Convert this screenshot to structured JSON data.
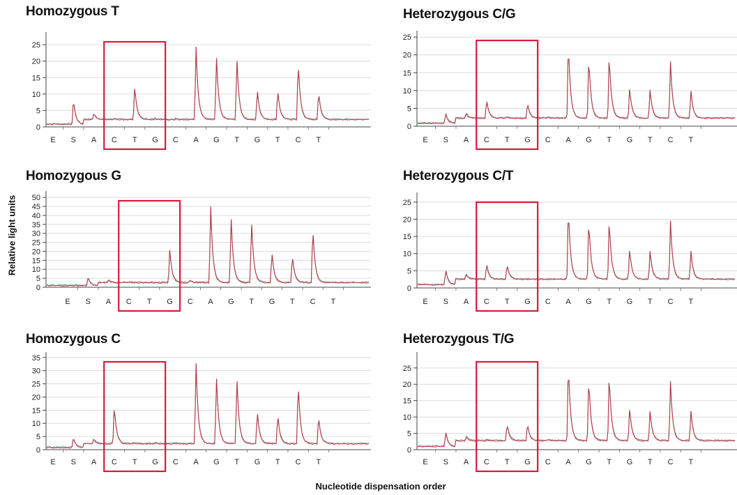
{
  "chart_data": {
    "type": "line",
    "xlabel": "Nucleotide dispensation order",
    "ylabel": "Relative light units",
    "dispensation_order": [
      "E",
      "S",
      "A",
      "C",
      "T",
      "G",
      "C",
      "A",
      "G",
      "T",
      "G",
      "T",
      "C",
      "T"
    ],
    "highlight_positions": [
      "C",
      "T",
      "G"
    ],
    "highlight_color": "#d7193c",
    "trace_colors": {
      "primary": "#c0273a",
      "secondary": "#909090"
    },
    "grid": true,
    "panels": [
      {
        "title": "Homozygous T",
        "yticks": [
          0,
          5,
          10,
          15,
          20,
          25
        ],
        "ylim": [
          0,
          28
        ],
        "baseline": 2.2,
        "peaks": [
          {
            "x": "S",
            "y": 10
          },
          {
            "x": "A",
            "y": 4
          },
          {
            "x": "C",
            "y": 2.5
          },
          {
            "x": "T",
            "y": 12.5
          },
          {
            "x": "G",
            "y": 2.5
          },
          {
            "x": "C",
            "y": 2.5
          },
          {
            "x": "A",
            "y": 25
          },
          {
            "x": "G",
            "y": 22
          },
          {
            "x": "T",
            "y": 21.5
          },
          {
            "x": "G",
            "y": 11.5
          },
          {
            "x": "T",
            "y": 11.5
          },
          {
            "x": "C",
            "y": 20.5
          },
          {
            "x": "T",
            "y": 11
          }
        ]
      },
      {
        "title": "Homozygous G",
        "yticks": [
          0,
          5,
          10,
          15,
          20,
          25,
          30,
          35,
          40,
          45,
          50
        ],
        "ylim": [
          0,
          52
        ],
        "baseline": 2.5,
        "peaks": [
          {
            "x": "S",
            "y": 7
          },
          {
            "x": "A",
            "y": 4
          },
          {
            "x": "C",
            "y": 2.5
          },
          {
            "x": "T",
            "y": 2.5
          },
          {
            "x": "G",
            "y": 21.5
          },
          {
            "x": "C",
            "y": 3.5
          },
          {
            "x": "A",
            "y": 46
          },
          {
            "x": "G",
            "y": 40
          },
          {
            "x": "T",
            "y": 38
          },
          {
            "x": "G",
            "y": 20
          },
          {
            "x": "T",
            "y": 18
          },
          {
            "x": "C",
            "y": 34
          },
          {
            "x": "T",
            "y": 2.5
          }
        ]
      },
      {
        "title": "Homozygous C",
        "yticks": [
          0,
          5,
          10,
          15,
          20,
          25,
          30,
          35
        ],
        "ylim": [
          0,
          36
        ],
        "baseline": 2.2,
        "peaks": [
          {
            "x": "S",
            "y": 6
          },
          {
            "x": "A",
            "y": 4
          },
          {
            "x": "C",
            "y": 17
          },
          {
            "x": "T",
            "y": 2.5
          },
          {
            "x": "G",
            "y": 2.5
          },
          {
            "x": "C",
            "y": 2.5
          },
          {
            "x": "A",
            "y": 33.5
          },
          {
            "x": "G",
            "y": 28.5
          },
          {
            "x": "T",
            "y": 28
          },
          {
            "x": "G",
            "y": 15
          },
          {
            "x": "T",
            "y": 13.5
          },
          {
            "x": "C",
            "y": 26
          },
          {
            "x": "T",
            "y": 13
          }
        ]
      },
      {
        "title": "Heterozygous C/G",
        "yticks": [
          0,
          5,
          10,
          15,
          20,
          25
        ],
        "ylim": [
          0,
          26
        ],
        "baseline": 2.2,
        "peaks": [
          {
            "x": "S",
            "y": 5
          },
          {
            "x": "A",
            "y": 3.5
          },
          {
            "x": "C",
            "y": 7.5
          },
          {
            "x": "T",
            "y": 2.5
          },
          {
            "x": "G",
            "y": 6.5
          },
          {
            "x": "C",
            "y": 2.5
          },
          {
            "x": "A",
            "y": 24
          },
          {
            "x": "G",
            "y": 20
          },
          {
            "x": "T",
            "y": 20.5
          },
          {
            "x": "G",
            "y": 11
          },
          {
            "x": "T",
            "y": 10.5
          },
          {
            "x": "C",
            "y": 18
          },
          {
            "x": "T",
            "y": 10
          }
        ]
      },
      {
        "title": "Heterozygous C/T",
        "yticks": [
          0,
          5,
          10,
          15,
          20,
          25
        ],
        "ylim": [
          0,
          27
        ],
        "baseline": 2.5,
        "peaks": [
          {
            "x": "S",
            "y": 7
          },
          {
            "x": "A",
            "y": 4
          },
          {
            "x": "C",
            "y": 7
          },
          {
            "x": "T",
            "y": 7
          },
          {
            "x": "G",
            "y": 2.5
          },
          {
            "x": "C",
            "y": 2.5
          },
          {
            "x": "A",
            "y": 24
          },
          {
            "x": "G",
            "y": 20.5
          },
          {
            "x": "T",
            "y": 20.5
          },
          {
            "x": "G",
            "y": 11.5
          },
          {
            "x": "T",
            "y": 11
          },
          {
            "x": "C",
            "y": 19.5
          },
          {
            "x": "T",
            "y": 11
          }
        ]
      },
      {
        "title": "Heterozygous T/G",
        "yticks": [
          0,
          5,
          10,
          15,
          20,
          25
        ],
        "ylim": [
          0,
          29
        ],
        "baseline": 2.7,
        "peaks": [
          {
            "x": "S",
            "y": 7
          },
          {
            "x": "A",
            "y": 4
          },
          {
            "x": "C",
            "y": 3
          },
          {
            "x": "T",
            "y": 8
          },
          {
            "x": "G",
            "y": 8
          },
          {
            "x": "C",
            "y": 3
          },
          {
            "x": "A",
            "y": 27
          },
          {
            "x": "G",
            "y": 22.5
          },
          {
            "x": "T",
            "y": 23.5
          },
          {
            "x": "G",
            "y": 13
          },
          {
            "x": "T",
            "y": 12
          },
          {
            "x": "C",
            "y": 21
          },
          {
            "x": "T",
            "y": 12
          }
        ]
      }
    ]
  }
}
